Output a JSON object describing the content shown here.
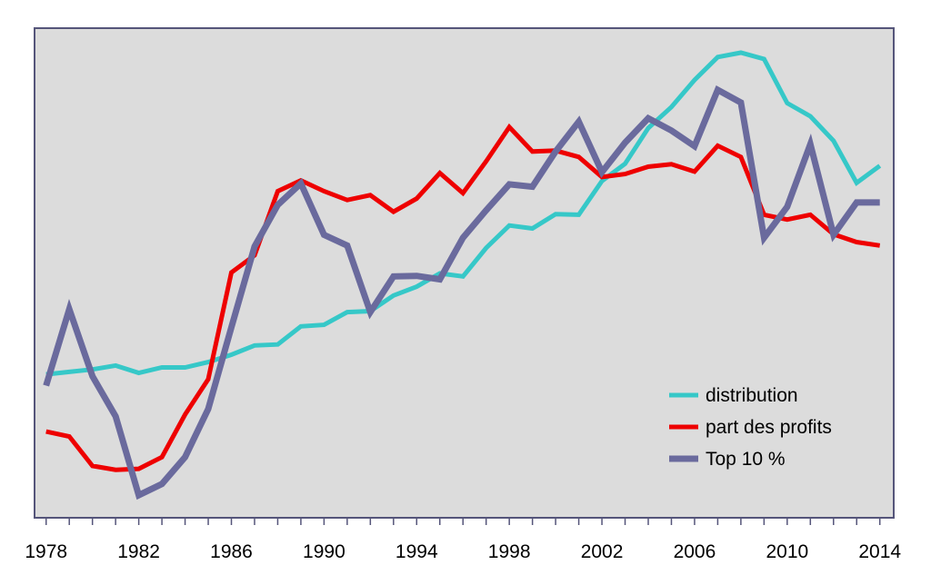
{
  "chart_data": {
    "type": "line",
    "title": "",
    "xlabel": "",
    "ylabel": "",
    "x": [
      1978,
      1979,
      1980,
      1981,
      1982,
      1983,
      1984,
      1985,
      1986,
      1987,
      1988,
      1989,
      1990,
      1991,
      1992,
      1993,
      1994,
      1995,
      1996,
      1997,
      1998,
      1999,
      2000,
      2001,
      2002,
      2003,
      2004,
      2005,
      2006,
      2007,
      2008,
      2009,
      2010,
      2011,
      2012,
      2013,
      2014
    ],
    "xlim": [
      1977.5,
      2014.6
    ],
    "ylim": [
      0,
      100
    ],
    "y_ticks_shown": false,
    "x_ticks": [
      1978,
      1982,
      1986,
      1990,
      1994,
      1998,
      2002,
      2006,
      2010,
      2014
    ],
    "x_tick_labels": [
      "1978",
      "1982",
      "1986",
      "1990",
      "1994",
      "1998",
      "2002",
      "2006",
      "2010",
      "2014"
    ],
    "grid": false,
    "background": "#dcdcdc",
    "legend_position": "bottom-right",
    "series": [
      {
        "name": "distribution",
        "color": "#36c8c8",
        "values": [
          29.3,
          29.8,
          30.3,
          31.1,
          29.6,
          30.7,
          30.7,
          31.8,
          33.3,
          35.2,
          35.4,
          39.1,
          39.4,
          42.0,
          42.2,
          45.4,
          47.2,
          49.9,
          49.3,
          55.1,
          59.7,
          59.1,
          62.0,
          61.9,
          68.8,
          72.3,
          79.6,
          83.9,
          89.4,
          94.1,
          95.0,
          93.7,
          84.7,
          82.0,
          77.0,
          68.4,
          71.9
        ]
      },
      {
        "name": "part des profits",
        "color": "#ee0000",
        "values": [
          17.6,
          16.6,
          10.6,
          9.8,
          10.0,
          12.4,
          21.1,
          28.3,
          50.1,
          53.6,
          66.7,
          68.9,
          66.7,
          64.9,
          65.9,
          62.5,
          65.2,
          70.4,
          66.3,
          72.8,
          79.8,
          74.8,
          75.0,
          73.7,
          69.6,
          70.2,
          71.7,
          72.2,
          70.7,
          76.0,
          73.7,
          61.9,
          60.9,
          61.9,
          57.9,
          56.3,
          55.6
        ]
      },
      {
        "name": "Top 10 %",
        "color": "#6a6a9d",
        "values": [
          27.0,
          42.6,
          28.9,
          20.7,
          4.6,
          6.9,
          12.4,
          22.2,
          38.9,
          55.4,
          63.9,
          68.3,
          57.8,
          55.6,
          42.0,
          49.3,
          49.4,
          48.7,
          57.2,
          62.8,
          68.1,
          67.6,
          74.8,
          80.9,
          70.6,
          76.6,
          81.6,
          79.1,
          75.9,
          87.4,
          84.8,
          57.2,
          63.5,
          76.3,
          57.8,
          64.4,
          64.4
        ]
      }
    ]
  }
}
